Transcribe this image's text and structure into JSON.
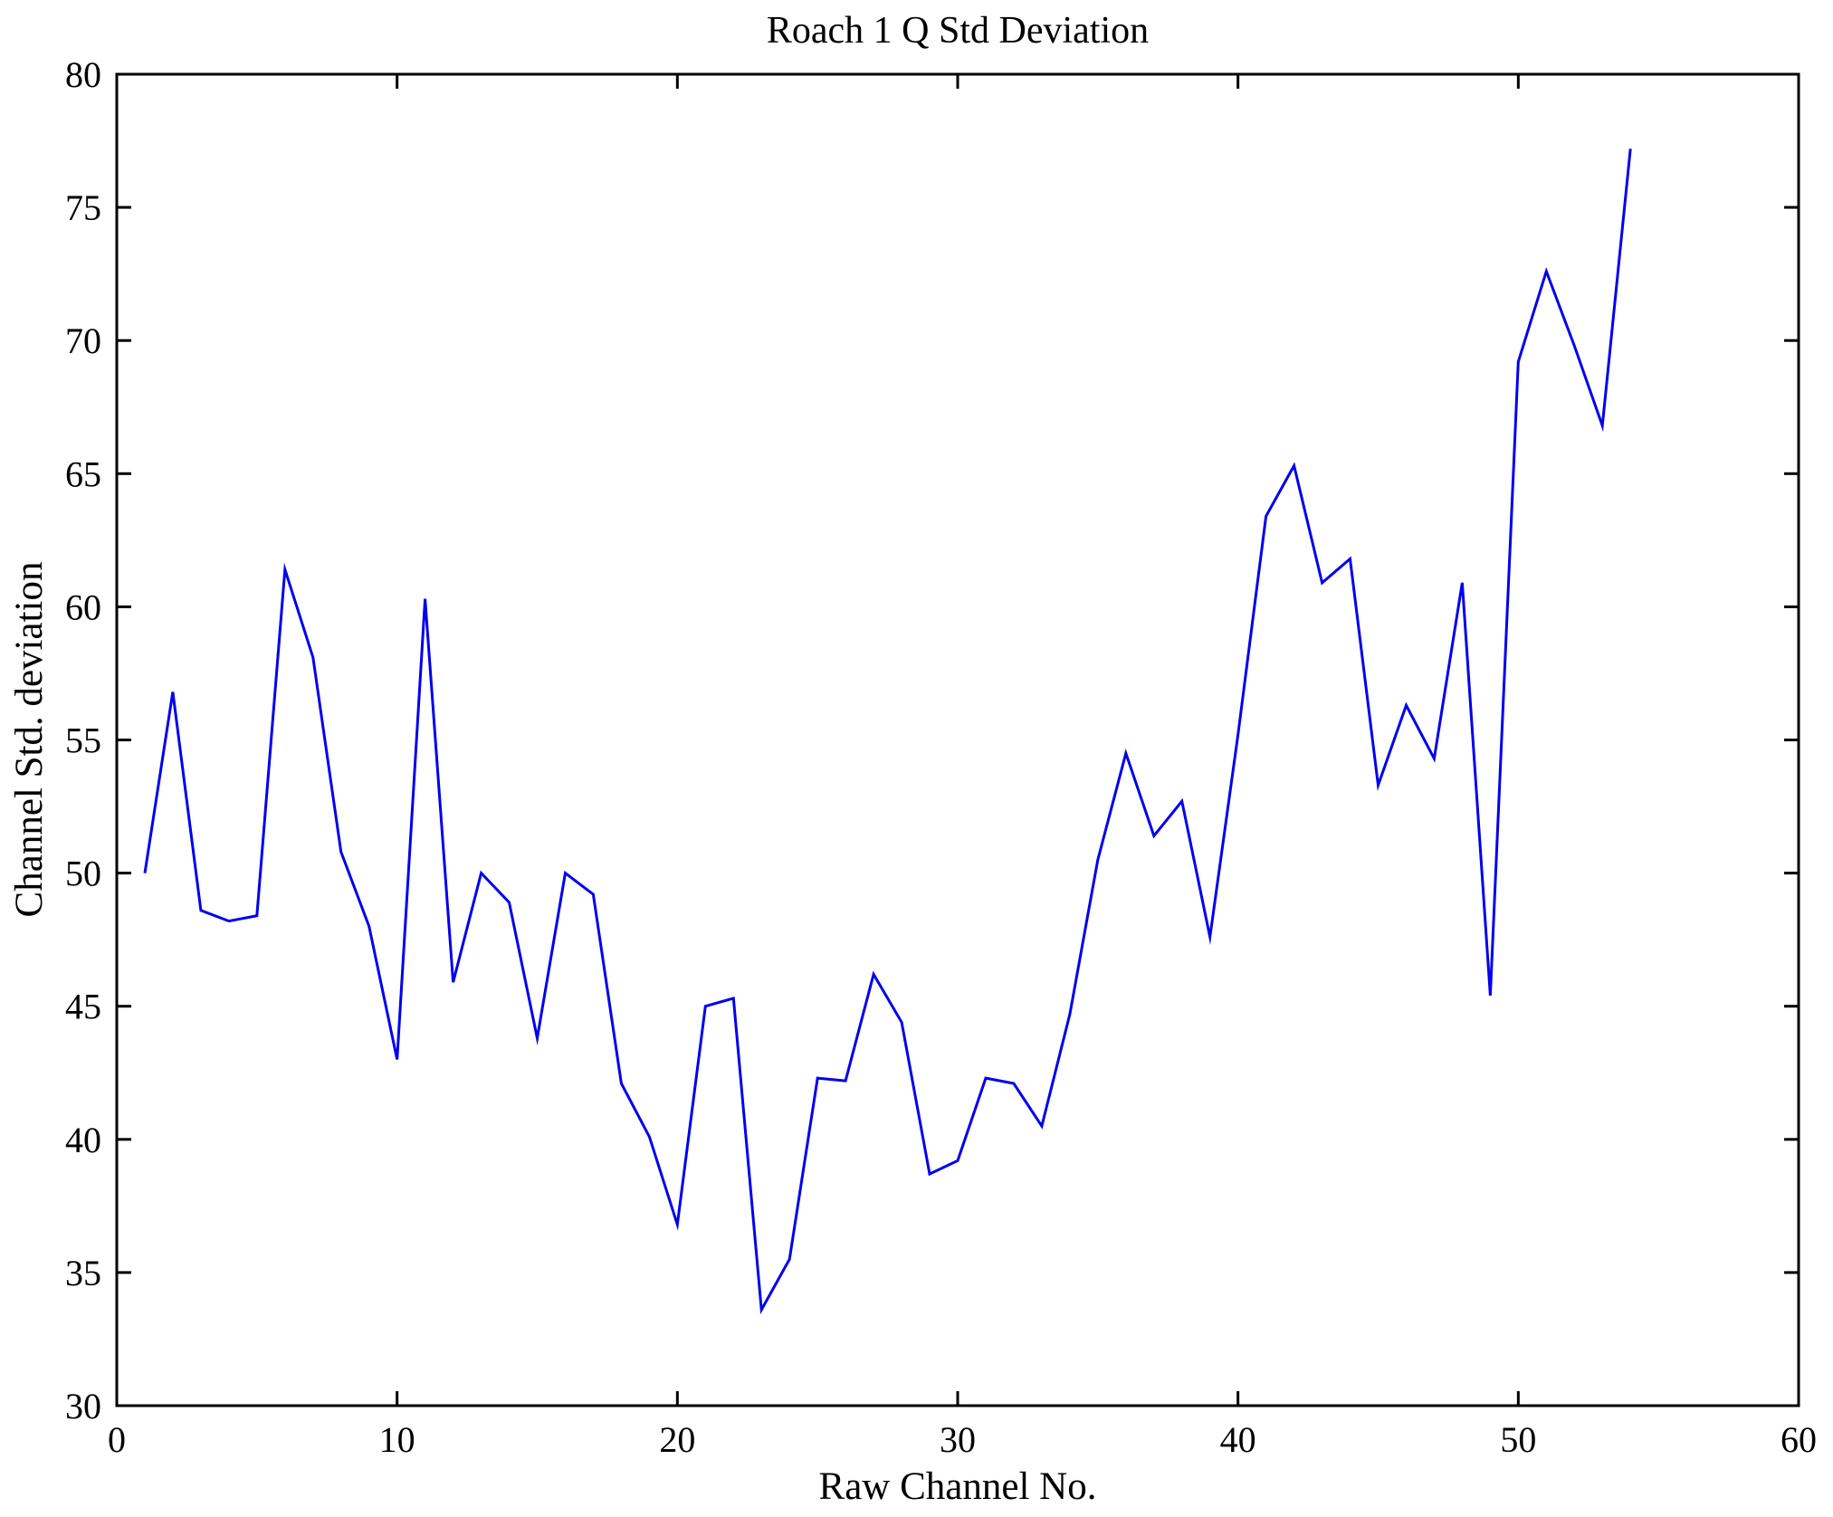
{
  "chart_data": {
    "type": "line",
    "title": "Roach 1 Q Std Deviation",
    "xlabel": "Raw Channel No.",
    "ylabel": "Channel Std. deviation",
    "xlim": [
      0,
      60
    ],
    "ylim": [
      30,
      80
    ],
    "xticks": [
      0,
      10,
      20,
      30,
      40,
      50,
      60
    ],
    "yticks": [
      30,
      35,
      40,
      45,
      50,
      55,
      60,
      65,
      70,
      75,
      80
    ],
    "grid": false,
    "legend": "none",
    "line_color": "#0000EE",
    "axis_color": "#000000",
    "background_color": "#ffffff",
    "x": [
      1,
      2,
      3,
      4,
      5,
      6,
      7,
      8,
      9,
      10,
      11,
      12,
      13,
      14,
      15,
      16,
      17,
      18,
      19,
      20,
      21,
      22,
      23,
      24,
      25,
      26,
      27,
      28,
      29,
      30,
      31,
      32,
      33,
      34,
      35,
      36,
      37,
      38,
      39,
      40,
      41,
      42,
      43,
      44,
      45,
      46,
      47,
      48,
      49,
      50,
      51,
      52,
      53,
      54
    ],
    "values": [
      50.0,
      56.8,
      48.6,
      48.2,
      48.4,
      61.4,
      58.1,
      50.8,
      48.0,
      43.0,
      60.3,
      45.9,
      50.0,
      48.9,
      43.8,
      50.0,
      49.2,
      42.1,
      40.1,
      36.8,
      45.0,
      45.3,
      33.6,
      35.5,
      42.3,
      42.2,
      46.2,
      44.4,
      38.7,
      39.2,
      42.3,
      42.1,
      40.5,
      44.7,
      50.5,
      54.5,
      51.4,
      52.7,
      47.6,
      55.2,
      63.4,
      65.3,
      60.9,
      61.8,
      53.3,
      56.3,
      54.3,
      60.9,
      45.4,
      69.2,
      72.6,
      69.8,
      66.8,
      77.2
    ]
  }
}
